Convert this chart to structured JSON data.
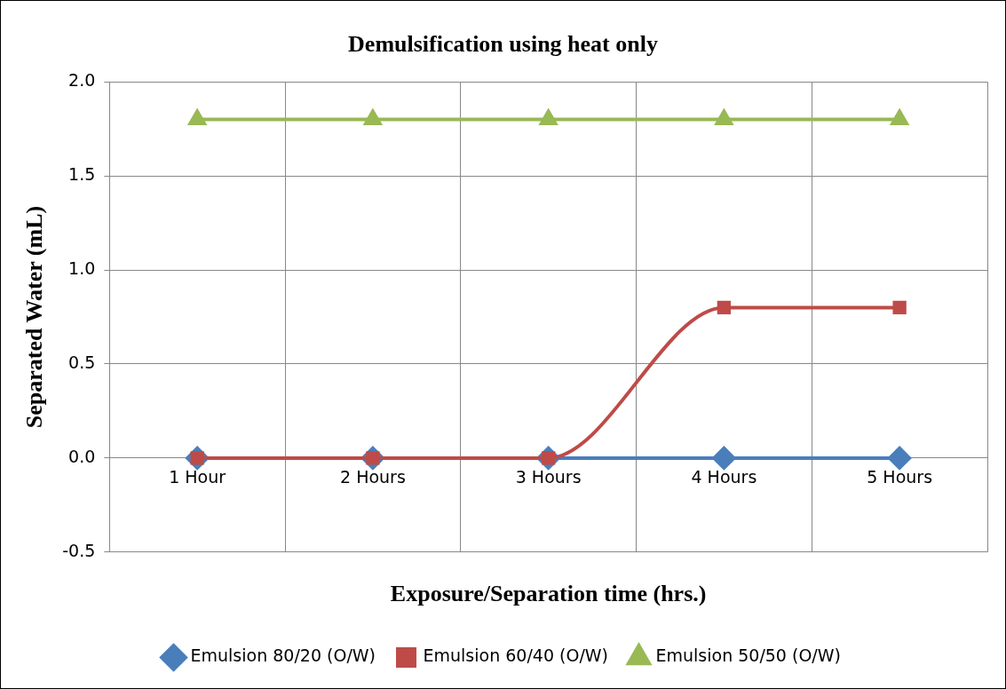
{
  "chart_data": {
    "type": "line",
    "title": "Demulsification using heat only",
    "xlabel": "Exposure/Separation time (hrs.)",
    "ylabel": "Separated Water (mL)",
    "categories": [
      "1 Hour",
      "2 Hours",
      "3 Hours",
      "4 Hours",
      "5 Hours"
    ],
    "series": [
      {
        "name": "Emulsion 80/20 (O/W)",
        "color": "#4a7ebb",
        "marker": "diamond",
        "values": [
          0,
          0,
          0,
          0,
          0
        ]
      },
      {
        "name": "Emulsion 60/40 (O/W)",
        "color": "#be4b48",
        "marker": "square",
        "values": [
          0,
          0,
          0,
          0.8,
          0.8
        ]
      },
      {
        "name": "Emulsion 50/50 (O/W)",
        "color": "#98b954",
        "marker": "triangle",
        "values": [
          1.8,
          1.8,
          1.8,
          1.8,
          1.8
        ]
      }
    ],
    "ylim": [
      -0.5,
      2.0
    ],
    "yticks": [
      {
        "value": -0.5,
        "label": "-0.5"
      },
      {
        "value": 0,
        "label": "0.0"
      },
      {
        "value": 0.5,
        "label": "0.5"
      },
      {
        "value": 1,
        "label": "1.0"
      },
      {
        "value": 1.5,
        "label": "1.5"
      },
      {
        "value": 2,
        "label": "2.0"
      }
    ],
    "grid": true,
    "legend": "bottom"
  }
}
